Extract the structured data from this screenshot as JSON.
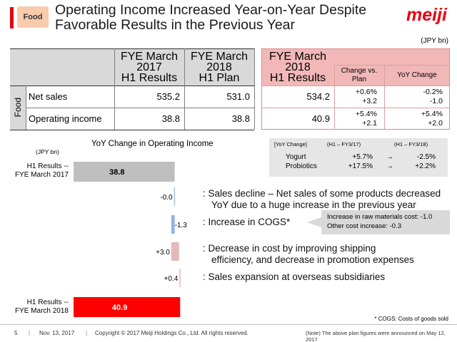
{
  "header": {
    "tag": "Food",
    "title_line1": "Operating Income Increased Year-on-Year Despite",
    "title_line2": "Favorable Results in the Previous Year",
    "logo": "meiji"
  },
  "table": {
    "unit": "(JPY bn)",
    "side_label": "Food",
    "headers": {
      "col1_line1": "FYE March 2017",
      "col1_line2": "H1 Results",
      "col2_line1": "FYE March 2018",
      "col2_line2": "H1 Plan",
      "col3_line1": "FYE March 2018",
      "col3_line2": "H1 Results",
      "col4_line1": "Change vs.",
      "col4_line2": "Plan",
      "col5": "YoY Change"
    },
    "rows": [
      {
        "label": "Net sales",
        "fye2017_h1": "535.2",
        "fye2018_plan": "531.0",
        "fye2018_h1": "534.2",
        "vs_plan_pct": "+0.6%",
        "vs_plan_abs": "+3.2",
        "yoy_pct": "-0.2%",
        "yoy_abs": "-1.0"
      },
      {
        "label": "Operating income",
        "fye2017_h1": "38.8",
        "fye2018_plan": "38.8",
        "fye2018_h1": "40.9",
        "vs_plan_pct": "+5.4%",
        "vs_plan_abs": "+2.1",
        "yoy_pct": "+5.4%",
        "yoy_abs": "+2.0"
      }
    ]
  },
  "chart_data": {
    "type": "bar",
    "title": "YoY Change in Operating Income",
    "unit": "(JPY bn)",
    "categories": [
      "H1 Results -- FYE March 2017",
      "",
      "",
      "",
      "",
      "H1 Results -- FYE March 2018"
    ],
    "bars": [
      {
        "label_line1": "H1 Results --",
        "label_line2": "FYE March 2017",
        "value": 38.8,
        "value_label": "38.8",
        "kind": "total",
        "color": "#bfbfbf"
      },
      {
        "label_line1": "",
        "label_line2": "",
        "value": -0.0,
        "value_label": "-0.0",
        "kind": "change",
        "color": "#9dc3e6"
      },
      {
        "label_line1": "",
        "label_line2": "",
        "value": -1.3,
        "value_label": "-1.3",
        "kind": "change",
        "color": "#8eb4e3"
      },
      {
        "label_line1": "",
        "label_line2": "",
        "value": 3.0,
        "value_label": "+3.0",
        "kind": "change",
        "color": "#e6b9b8"
      },
      {
        "label_line1": "",
        "label_line2": "",
        "value": 0.4,
        "value_label": "+0.4",
        "kind": "change",
        "color": "#e6b9b8"
      },
      {
        "label_line1": "H1 Results --",
        "label_line2": "FYE March 2018",
        "value": 40.9,
        "value_label": "40.9",
        "kind": "total",
        "color": "#ff0000"
      }
    ],
    "annotations": [
      {
        "line1": ": Sales decline – Net sales of some products decreased",
        "line2": "YoY due to a huge increase in the previous year"
      },
      {
        "line1": ": Increase in COGS*",
        "line2": ""
      },
      {
        "line1": ": Decrease in cost by improving shipping",
        "line2": "efficiency, and decrease in promotion expenses"
      },
      {
        "line1": ": Sales expansion at overseas subsidiaries",
        "line2": ""
      }
    ]
  },
  "yoy_box": {
    "col1": "[YoY Change]",
    "col2": "(H1 – FY3/17)",
    "col3": "(H1 – FY3/18)",
    "rows": [
      {
        "name": "Yogurt",
        "prev": "+5.7%",
        "arrow": "→",
        "curr": "-2.5%"
      },
      {
        "name": "Probiotics",
        "prev": "+17.5%",
        "arrow": "→",
        "curr": "+2.2%"
      }
    ]
  },
  "cogs_box": {
    "line1": "Increase in raw materials cost:  -1.0",
    "line2": "Other cost increase: -0.3"
  },
  "cogs_note": "* COGS: Costs of goods sold",
  "footer": {
    "page": "5",
    "date": "Nov. 13, 2017",
    "copyright": "Copyright © 2017 Meiji Holdings Co., Ltd. All rights reserved.",
    "note": "(Note) The above plan figures were announced on May 12, 2017"
  }
}
